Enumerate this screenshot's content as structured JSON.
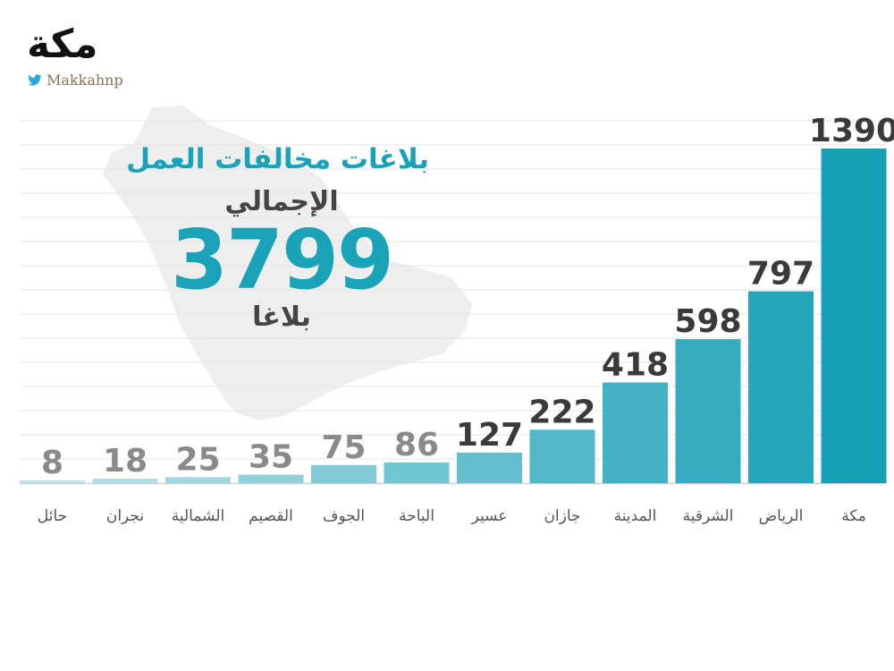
{
  "logo": {
    "text": "مكة",
    "handle": "Makkahnp",
    "icon": "twitter-bird-icon"
  },
  "info": {
    "title": "بلاغات مخالفات العمل",
    "subtitle": "الإجمالي",
    "total": "3799",
    "unit": "بلاغا"
  },
  "colors": {
    "accent": "#1aa3b8",
    "light": "#bfe3ea",
    "map": "#eeeeee"
  },
  "chart_data": {
    "type": "bar",
    "title": "بلاغات مخالفات العمل",
    "categories": [
      "حائل",
      "نجران",
      "الشمالية",
      "القصيم",
      "الجوف",
      "الباحة",
      "عسير",
      "جازان",
      "المدينة",
      "الشرقية",
      "الرياض",
      "مكة"
    ],
    "values": [
      8,
      18,
      25,
      35,
      75,
      86,
      127,
      222,
      418,
      598,
      797,
      1390
    ],
    "ylim": [
      0,
      1390
    ],
    "grid": true,
    "legend": "none"
  }
}
